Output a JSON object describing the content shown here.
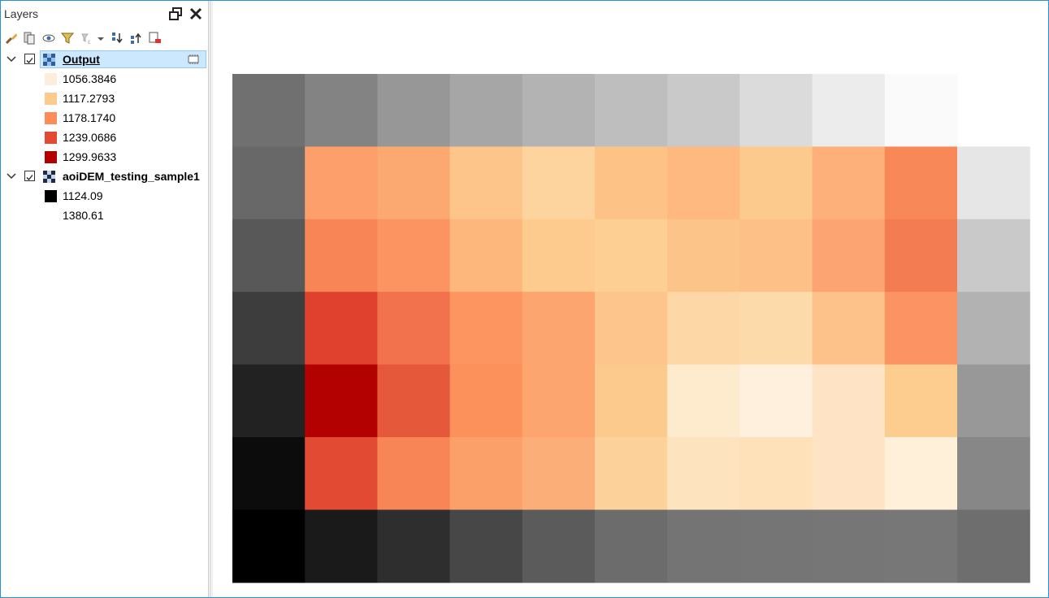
{
  "panel": {
    "title": "Layers"
  },
  "toolbar": {
    "buttons": [
      "style-manager-icon",
      "add-group-icon",
      "manage-visibility-icon",
      "filter-legend-icon",
      "filter-expression-icon",
      "dropdown-arrow-icon",
      "expand-all-icon",
      "collapse-all-icon",
      "remove-layer-icon"
    ]
  },
  "layers": [
    {
      "name": "Output",
      "checked": true,
      "selected": true,
      "legend": [
        {
          "label": "1056.3846",
          "color": "#fdeedb"
        },
        {
          "label": "1117.2793",
          "color": "#fdca8d"
        },
        {
          "label": "1178.1740",
          "color": "#fc8d59"
        },
        {
          "label": "1239.0686",
          "color": "#e34a33"
        },
        {
          "label": "1299.9633",
          "color": "#b30000"
        }
      ]
    },
    {
      "name": "aoiDEM_testing_sample1",
      "checked": true,
      "selected": false,
      "legend": [
        {
          "label": "1124.09",
          "color": "#000000"
        },
        {
          "label": "1380.61",
          "color": "#ffffff"
        }
      ]
    }
  ],
  "grid": {
    "gray": [
      [
        112,
        131,
        151,
        166,
        179,
        190,
        201,
        219,
        236,
        250,
        null
      ],
      [
        104,
        null,
        null,
        null,
        null,
        null,
        null,
        null,
        null,
        null,
        230
      ],
      [
        88,
        null,
        null,
        null,
        null,
        null,
        null,
        null,
        null,
        null,
        201
      ],
      [
        61,
        null,
        null,
        null,
        null,
        null,
        null,
        null,
        null,
        null,
        178
      ],
      [
        34,
        null,
        null,
        null,
        null,
        null,
        null,
        null,
        null,
        null,
        152
      ],
      [
        12,
        null,
        null,
        null,
        null,
        null,
        null,
        null,
        null,
        null,
        135
      ],
      [
        0,
        26,
        46,
        71,
        91,
        108,
        116,
        117,
        118,
        119,
        110
      ]
    ],
    "color": [
      [
        null,
        null,
        null,
        null,
        null,
        null,
        null,
        null,
        null,
        null,
        null
      ],
      [
        null,
        "#fc9f6a",
        "#fca871",
        "#fdc58a",
        "#fdd49e",
        "#fdc386",
        "#fdb97f",
        "#fdca8d",
        "#fdb07a",
        "#f88857",
        null
      ],
      [
        null,
        "#f78555",
        "#fc9461",
        "#fdb77d",
        "#fdcb8e",
        "#fdcf92",
        "#fcc488",
        "#fdc086",
        "#fca572",
        "#f47c52",
        null
      ],
      [
        null,
        "#e0412e",
        "#f1724c",
        "#fc955f",
        "#fca56f",
        "#fdc48b",
        "#fdd7a6",
        "#fddaa9",
        "#fdc28a",
        "#fb9462",
        null
      ],
      [
        null,
        "#b30000",
        "#e55839",
        "#fd915c",
        "#fca56f",
        "#fdca8d",
        "#feeacd",
        "#fef0dd",
        "#fee4c4",
        "#fdcd8f",
        null
      ],
      [
        null,
        "#e34a33",
        "#f78555",
        "#fca06a",
        "#fcae78",
        "#fdd29a",
        "#fee3bf",
        "#fee0b9",
        "#fee4c4",
        "#fef0d9",
        null
      ],
      [
        null,
        null,
        null,
        null,
        null,
        null,
        null,
        null,
        null,
        null,
        null
      ]
    ]
  }
}
